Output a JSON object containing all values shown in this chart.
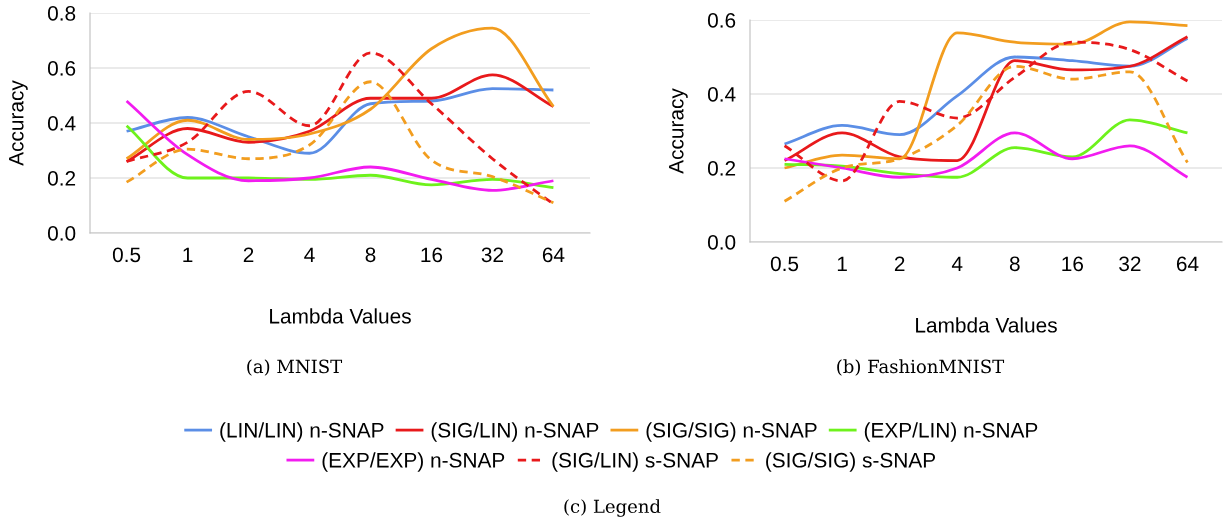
{
  "chart_data": [
    {
      "type": "line",
      "xlabel": "Lambda Values",
      "ylabel": "Accuracy",
      "categories": [
        "0.5",
        "1",
        "2",
        "4",
        "8",
        "16",
        "32",
        "64"
      ],
      "ylim": [
        0,
        0.8
      ],
      "yticks": [
        {
          "value": 0,
          "label": "0.0"
        },
        0.2,
        0.4,
        0.6,
        0.8
      ],
      "grid": "y",
      "legend": "bottom",
      "annotations": [
        "(a) MNIST"
      ],
      "series": [
        {
          "name": "(LIN/LIN) n-SNAP",
          "color": "#5b8ee6",
          "values": [
            0.37,
            0.42,
            0.35,
            0.29,
            0.47,
            0.48,
            0.525,
            0.52
          ]
        },
        {
          "name": "(SIG/LIN) n-SNAP",
          "color": "#e8191b",
          "values": [
            0.26,
            0.38,
            0.33,
            0.37,
            0.49,
            0.49,
            0.575,
            0.46
          ]
        },
        {
          "name": "(SIG/SIG) n-SNAP",
          "color": "#f29d1f",
          "values": [
            0.27,
            0.41,
            0.34,
            0.36,
            0.45,
            0.67,
            0.745,
            0.46
          ]
        },
        {
          "name": "(EXP/LIN) n-SNAP",
          "color": "#6ef21c",
          "values": [
            0.39,
            0.2,
            0.2,
            0.195,
            0.21,
            0.175,
            0.195,
            0.165
          ]
        },
        {
          "name": "(EXP/EXP) n-SNAP",
          "color": "#f21cf0",
          "values": [
            0.48,
            0.285,
            0.19,
            0.2,
            0.24,
            0.195,
            0.155,
            0.19
          ]
        },
        {
          "name": "(SIG/LIN) s-SNAP",
          "color": "#e8191b",
          "line_style": "dashed",
          "values": [
            0.26,
            0.33,
            0.515,
            0.39,
            0.655,
            0.47,
            0.27,
            0.105
          ]
        },
        {
          "name": "(SIG/SIG) s-SNAP",
          "color": "#f29d1f",
          "line_style": "dashed",
          "values": [
            0.185,
            0.305,
            0.27,
            0.32,
            0.55,
            0.265,
            0.205,
            0.11
          ]
        }
      ]
    },
    {
      "type": "line",
      "xlabel": "Lambda Values",
      "ylabel": "Accuracy",
      "categories": [
        "0.5",
        "1",
        "2",
        "4",
        "8",
        "16",
        "32",
        "64"
      ],
      "ylim": [
        0,
        0.6
      ],
      "yticks": [
        {
          "value": 0,
          "label": "0.0"
        },
        0.2,
        0.4,
        0.6
      ],
      "grid": "y",
      "legend": "bottom",
      "annotations": [
        "(b) FashionMNIST",
        "(c) Legend"
      ],
      "series": [
        {
          "name": "(LIN/LIN) n-SNAP",
          "color": "#5b8ee6",
          "values": [
            0.265,
            0.315,
            0.29,
            0.395,
            0.5,
            0.49,
            0.475,
            0.55
          ]
        },
        {
          "name": "(SIG/LIN) n-SNAP",
          "color": "#e8191b",
          "values": [
            0.22,
            0.295,
            0.23,
            0.22,
            0.49,
            0.465,
            0.475,
            0.555
          ]
        },
        {
          "name": "(SIG/SIG) n-SNAP",
          "color": "#f29d1f",
          "values": [
            0.2,
            0.235,
            0.225,
            0.565,
            0.54,
            0.535,
            0.595,
            0.585
          ]
        },
        {
          "name": "(EXP/LIN) n-SNAP",
          "color": "#6ef21c",
          "values": [
            0.21,
            0.205,
            0.185,
            0.175,
            0.255,
            0.23,
            0.33,
            0.295
          ]
        },
        {
          "name": "(EXP/EXP) n-SNAP",
          "color": "#f21cf0",
          "values": [
            0.225,
            0.2,
            0.175,
            0.2,
            0.295,
            0.225,
            0.26,
            0.175
          ]
        },
        {
          "name": "(SIG/LIN) s-SNAP",
          "color": "#e8191b",
          "line_style": "dashed",
          "values": [
            0.26,
            0.165,
            0.38,
            0.335,
            0.445,
            0.54,
            0.52,
            0.435
          ]
        },
        {
          "name": "(SIG/SIG) s-SNAP",
          "color": "#f29d1f",
          "line_style": "dashed",
          "values": [
            0.11,
            0.2,
            0.225,
            0.315,
            0.475,
            0.44,
            0.46,
            0.215
          ]
        }
      ]
    }
  ]
}
